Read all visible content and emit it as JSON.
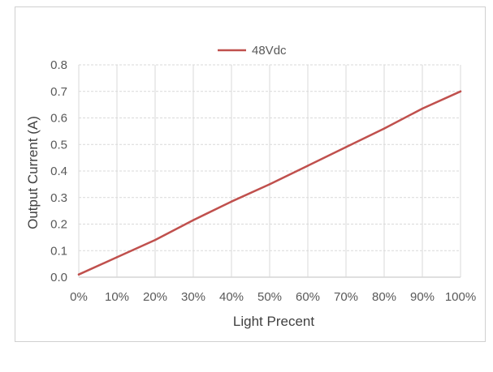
{
  "chart_data": {
    "type": "line",
    "x": [
      "0%",
      "10%",
      "20%",
      "30%",
      "40%",
      "50%",
      "60%",
      "70%",
      "80%",
      "90%",
      "100%"
    ],
    "series": [
      {
        "name": "48Vdc",
        "values": [
          0.01,
          0.075,
          0.14,
          0.215,
          0.285,
          0.35,
          0.42,
          0.49,
          0.56,
          0.635,
          0.7
        ],
        "color": "#c0504d"
      }
    ],
    "xlabel": "Light Precent",
    "ylabel": "Output Current (A)",
    "ylim": [
      0,
      0.8
    ],
    "yticks": [
      "0.0",
      "0.1",
      "0.2",
      "0.3",
      "0.4",
      "0.5",
      "0.6",
      "0.7",
      "0.8"
    ],
    "grid": true,
    "legend_position": "top"
  }
}
